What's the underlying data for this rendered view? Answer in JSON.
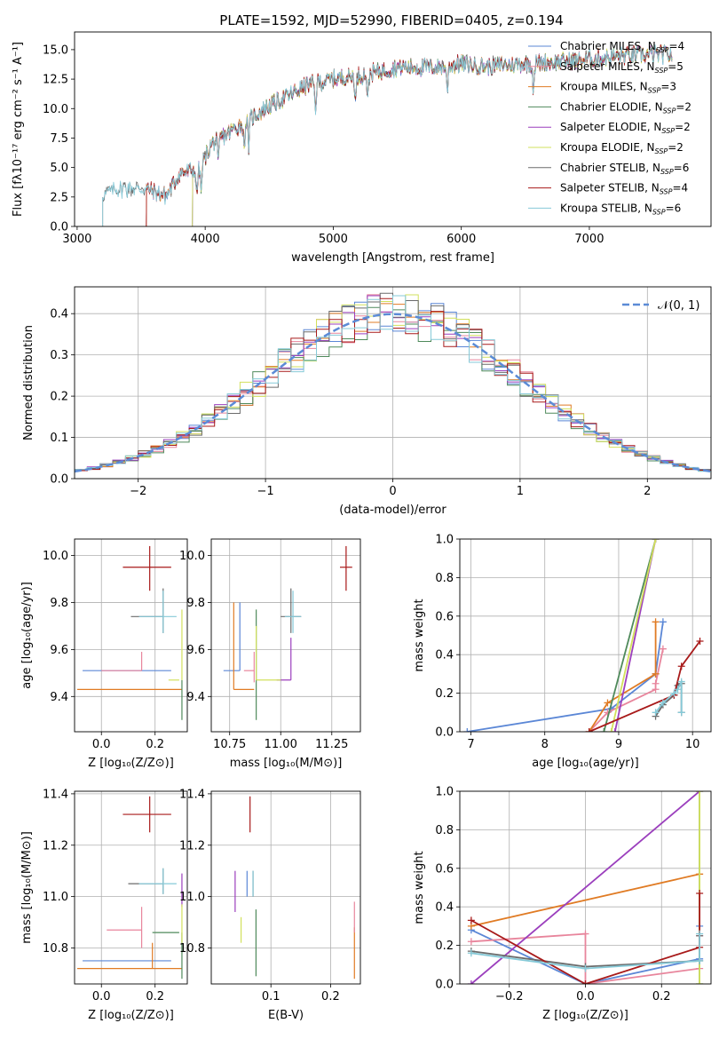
{
  "colors": {
    "Chabrier MILES": "#5b87d6",
    "Salpeter MILES": "#e8859c",
    "Kroupa MILES": "#e07b24",
    "Chabrier ELODIE": "#4f8a5b",
    "Salpeter ELODIE": "#9b3fbd",
    "Kroupa ELODIE": "#d2e05c",
    "Chabrier STELIB": "#6b6b6b",
    "Salpeter STELIB": "#a81a1a",
    "Kroupa STELIB": "#86cad8"
  },
  "chart_data": [
    {
      "id": "spectrum",
      "type": "line",
      "title": "PLATE=1592, MJD=52990, FIBERID=0405, z=0.194",
      "xlabel": "wavelength [Angstrom, rest frame]",
      "ylabel": "Flux [fλ10⁻¹⁷ erg cm⁻² s⁻¹ A⁻¹]",
      "xlim": [
        2980,
        7950
      ],
      "ylim": [
        0,
        16.5
      ],
      "xticks": [
        3000,
        4000,
        5000,
        6000,
        7000
      ],
      "yticks": [
        0.0,
        2.5,
        5.0,
        7.5,
        10.0,
        12.5,
        15.0
      ],
      "legend_position": "right",
      "series": [
        {
          "name": "Chabrier MILES, N_SSP=4",
          "model": "Chabrier MILES",
          "start": 3540
        },
        {
          "name": "Salpeter MILES, N_SSP=5",
          "model": "Salpeter MILES",
          "start": 3540
        },
        {
          "name": "Kroupa MILES, N_SSP=3",
          "model": "Kroupa MILES",
          "start": 3540
        },
        {
          "name": "Chabrier ELODIE, N_SSP=2",
          "model": "Chabrier ELODIE",
          "start": 3900
        },
        {
          "name": "Salpeter ELODIE, N_SSP=2",
          "model": "Salpeter ELODIE",
          "start": 3900
        },
        {
          "name": "Kroupa ELODIE, N_SSP=2",
          "model": "Kroupa ELODIE",
          "start": 3900
        },
        {
          "name": "Chabrier STELIB, N_SSP=6",
          "model": "Chabrier STELIB",
          "start": 3200
        },
        {
          "name": "Salpeter STELIB, N_SSP=4",
          "model": "Salpeter STELIB",
          "start": 3540
        },
        {
          "name": "Kroupa STELIB, N_SSP=6",
          "model": "Kroupa STELIB",
          "start": 3200
        }
      ],
      "continuum_points": {
        "x": [
          3200,
          3300,
          3500,
          3700,
          3800,
          3950,
          4050,
          4300,
          4500,
          4800,
          5000,
          5200,
          5500,
          5800,
          6000,
          6200,
          6500,
          6800,
          7000,
          7300,
          7500,
          7650
        ],
        "y": [
          2.8,
          3.2,
          3.3,
          2.6,
          4.5,
          4.8,
          7.0,
          8.8,
          10.2,
          12.0,
          12.5,
          12.8,
          13.5,
          13.5,
          13.8,
          13.6,
          13.8,
          14.0,
          14.2,
          14.5,
          14.6,
          14.6
        ]
      },
      "absorption_lines": [
        3934,
        3969,
        4102,
        4304,
        4340,
        4861,
        5175,
        5270,
        5890,
        6563
      ]
    },
    {
      "id": "residuals",
      "type": "histogram",
      "xlabel": "(data-model)/error",
      "ylabel": "Normed distribution",
      "xlim": [
        -2.5,
        2.5
      ],
      "ylim": [
        0,
        0.465
      ],
      "xticks": [
        -2,
        -1,
        0,
        1,
        2
      ],
      "yticks": [
        0.0,
        0.1,
        0.2,
        0.3,
        0.4
      ],
      "legend": "𝒩(0, 1)",
      "bin_width": 0.1
    },
    {
      "id": "age_vs_Z",
      "type": "errorbar",
      "xlabel": "Z [log₁₀(Z/Z⊙)]",
      "ylabel": "age  [log₁₀(age/yr)]",
      "xlim": [
        -0.1,
        0.32
      ],
      "ylim": [
        9.25,
        10.07
      ],
      "xticks": [
        0.0,
        0.2
      ],
      "yticks": [
        9.4,
        9.6,
        9.8,
        10.0
      ],
      "points": [
        {
          "model": "Chabrier MILES",
          "x": 0.2,
          "xerr": [
            0.27,
            0.06
          ],
          "y": 9.51,
          "yerr": [
            0.0,
            0.0
          ]
        },
        {
          "model": "Salpeter MILES",
          "x": 0.15,
          "xerr": [
            0.15,
            0.0
          ],
          "y": 9.51,
          "yerr": [
            0.0,
            0.08
          ]
        },
        {
          "model": "Kroupa MILES",
          "x": 0.19,
          "xerr": [
            0.28,
            0.11
          ],
          "y": 9.43,
          "yerr": [
            0.0,
            0.0
          ]
        },
        {
          "model": "Chabrier ELODIE",
          "x": 0.3,
          "xerr": [
            0.0,
            0.0
          ],
          "y": 9.47,
          "yerr": [
            0.17,
            0.0
          ]
        },
        {
          "model": "Salpeter ELODIE",
          "x": 0.3,
          "xerr": [
            0.0,
            0.0
          ],
          "y": 9.47,
          "yerr": [
            0.0,
            0.0
          ]
        },
        {
          "model": "Kroupa ELODIE",
          "x": 0.3,
          "xerr": [
            0.0,
            0.0
          ],
          "y": 9.47,
          "yerr": [
            0.0,
            0.3
          ]
        },
        {
          "model": "Chabrier STELIB",
          "x": 0.23,
          "xerr": [
            0.12,
            0.0
          ],
          "y": 9.74,
          "yerr": [
            0.07,
            0.12
          ]
        },
        {
          "model": "Salpeter STELIB",
          "x": 0.18,
          "xerr": [
            0.1,
            0.08
          ],
          "y": 9.95,
          "yerr": [
            0.1,
            0.09
          ]
        },
        {
          "model": "Kroupa STELIB",
          "x": 0.23,
          "xerr": [
            0.09,
            0.05
          ],
          "y": 9.74,
          "yerr": [
            0.07,
            0.11
          ]
        },
        {
          "model": "Kroupa ELODIE",
          "x": 0.29,
          "xerr": [
            0.04,
            0.0
          ],
          "y": 9.47,
          "yerr": [
            0.0,
            0.0
          ]
        }
      ]
    },
    {
      "id": "age_vs_mass",
      "type": "errorbar",
      "xlabel": "mass [log₁₀(M/M⊙)]",
      "ylabel": "",
      "xlim": [
        10.66,
        11.39
      ],
      "ylim": [
        9.25,
        10.07
      ],
      "xticks": [
        10.75,
        11.0,
        11.25
      ],
      "yticks": [
        9.4,
        9.6,
        9.8,
        10.0
      ],
      "points": [
        {
          "model": "Chabrier MILES",
          "x": 10.8,
          "xerr": [
            0.08,
            0.0
          ],
          "y": 9.51,
          "yerr": [
            0.0,
            0.29
          ]
        },
        {
          "model": "Salpeter MILES",
          "x": 10.87,
          "xerr": [
            0.05,
            0.0
          ],
          "y": 9.51,
          "yerr": [
            0.05,
            0.08
          ]
        },
        {
          "model": "Kroupa MILES",
          "x": 10.77,
          "xerr": [
            0.0,
            0.1
          ],
          "y": 9.43,
          "yerr": [
            0.0,
            0.37
          ]
        },
        {
          "model": "Chabrier ELODIE",
          "x": 10.88,
          "xerr": [
            0.0,
            0.0
          ],
          "y": 9.47,
          "yerr": [
            0.17,
            0.3
          ]
        },
        {
          "model": "Salpeter ELODIE",
          "x": 11.05,
          "xerr": [
            0.07,
            0.0
          ],
          "y": 9.47,
          "yerr": [
            0.0,
            0.18
          ]
        },
        {
          "model": "Kroupa ELODIE",
          "x": 10.88,
          "xerr": [
            0.0,
            0.12
          ],
          "y": 9.47,
          "yerr": [
            0.0,
            0.23
          ]
        },
        {
          "model": "Chabrier STELIB",
          "x": 11.05,
          "xerr": [
            0.05,
            0.05
          ],
          "y": 9.74,
          "yerr": [
            0.07,
            0.12
          ]
        },
        {
          "model": "Salpeter STELIB",
          "x": 11.32,
          "xerr": [
            0.03,
            0.03
          ],
          "y": 9.95,
          "yerr": [
            0.1,
            0.09
          ]
        },
        {
          "model": "Kroupa STELIB",
          "x": 11.06,
          "xerr": [
            0.04,
            0.04
          ],
          "y": 9.74,
          "yerr": [
            0.07,
            0.11
          ]
        }
      ]
    },
    {
      "id": "massweight_vs_age",
      "type": "line",
      "xlabel": "age  [log₁₀(age/yr)]",
      "ylabel": "mass weight",
      "xlim": [
        6.85,
        10.25
      ],
      "ylim": [
        0,
        1.0
      ],
      "xticks": [
        7,
        8,
        9,
        10
      ],
      "yticks": [
        0.0,
        0.2,
        0.4,
        0.6,
        0.8,
        1.0
      ],
      "series": [
        {
          "model": "Chabrier MILES",
          "x": [
            6.95,
            8.9,
            9.5,
            9.5,
            9.6
          ],
          "y": [
            0.0,
            0.12,
            0.3,
            0.3,
            0.57
          ]
        },
        {
          "model": "Salpeter MILES",
          "x": [
            8.6,
            8.85,
            9.5,
            9.5,
            9.6
          ],
          "y": [
            0.0,
            0.1,
            0.22,
            0.25,
            0.43
          ]
        },
        {
          "model": "Kroupa MILES",
          "x": [
            8.6,
            8.85,
            9.5,
            9.5,
            9.5
          ],
          "y": [
            0.0,
            0.15,
            0.3,
            0.3,
            0.57
          ]
        },
        {
          "model": "Chabrier ELODIE",
          "x": [
            8.8,
            9.5
          ],
          "y": [
            0.0,
            1.0
          ]
        },
        {
          "model": "Salpeter ELODIE",
          "x": [
            8.95,
            9.5
          ],
          "y": [
            0.0,
            1.0
          ]
        },
        {
          "model": "Kroupa ELODIE",
          "x": [
            8.9,
            9.5
          ],
          "y": [
            0.0,
            1.0
          ]
        },
        {
          "model": "Chabrier STELIB",
          "x": [
            9.5,
            9.6,
            9.75,
            9.8,
            9.85,
            9.85
          ],
          "y": [
            0.08,
            0.14,
            0.19,
            0.24,
            0.25,
            0.1
          ]
        },
        {
          "model": "Salpeter STELIB",
          "x": [
            8.6,
            9.75,
            9.85,
            10.1
          ],
          "y": [
            0.0,
            0.19,
            0.34,
            0.47
          ]
        },
        {
          "model": "Kroupa STELIB",
          "x": [
            9.5,
            9.6,
            9.75,
            9.8,
            9.85,
            9.85
          ],
          "y": [
            0.1,
            0.15,
            0.2,
            0.22,
            0.26,
            0.1
          ]
        }
      ]
    },
    {
      "id": "mass_vs_Z",
      "type": "errorbar",
      "xlabel": "Z [log₁₀(Z/Z⊙)]",
      "ylabel": "mass [log₁₀(M/M⊙)]",
      "xlim": [
        -0.1,
        0.32
      ],
      "ylim": [
        10.66,
        11.41
      ],
      "xticks": [
        0.0,
        0.2
      ],
      "yticks": [
        10.8,
        11.0,
        11.2,
        11.4
      ],
      "points": [
        {
          "model": "Chabrier MILES",
          "x": 0.2,
          "xerr": [
            0.27,
            0.06
          ],
          "y": 10.75,
          "yerr": [
            0.0,
            0.0
          ]
        },
        {
          "model": "Salpeter MILES",
          "x": 0.15,
          "xerr": [
            0.13,
            0.0
          ],
          "y": 10.87,
          "yerr": [
            0.07,
            0.09
          ]
        },
        {
          "model": "Kroupa MILES",
          "x": 0.19,
          "xerr": [
            0.28,
            0.11
          ],
          "y": 10.72,
          "yerr": [
            0.0,
            0.1
          ]
        },
        {
          "model": "Chabrier ELODIE",
          "x": 0.3,
          "xerr": [
            0.0,
            0.0
          ],
          "y": 10.8,
          "yerr": [
            0.12,
            0.06
          ]
        },
        {
          "model": "Salpeter ELODIE",
          "x": 0.3,
          "xerr": [
            0.0,
            0.0
          ],
          "y": 11.02,
          "yerr": [
            0.06,
            0.07
          ]
        },
        {
          "model": "Kroupa ELODIE",
          "x": 0.3,
          "xerr": [
            0.0,
            0.0
          ],
          "y": 10.87,
          "yerr": [
            0.05,
            0.1
          ]
        },
        {
          "model": "Chabrier STELIB",
          "x": 0.23,
          "xerr": [
            0.13,
            0.0
          ],
          "y": 11.05,
          "yerr": [
            0.04,
            0.06
          ]
        },
        {
          "model": "Salpeter STELIB",
          "x": 0.18,
          "xerr": [
            0.1,
            0.08
          ],
          "y": 11.32,
          "yerr": [
            0.07,
            0.07
          ]
        },
        {
          "model": "Kroupa STELIB",
          "x": 0.23,
          "xerr": [
            0.09,
            0.05
          ],
          "y": 11.05,
          "yerr": [
            0.04,
            0.06
          ]
        },
        {
          "model": "Chabrier ELODIE",
          "x": 0.19,
          "xerr": [
            0.0,
            0.1
          ],
          "y": 10.86,
          "yerr": [
            0.0,
            0.0
          ]
        }
      ]
    },
    {
      "id": "mass_vs_EBV",
      "type": "errorbar",
      "xlabel": "E(B-V)",
      "ylabel": "",
      "xlim": [
        0.0,
        0.25
      ],
      "ylim": [
        10.66,
        11.41
      ],
      "xticks": [
        0.1,
        0.2
      ],
      "yticks": [
        10.8,
        11.0,
        11.2,
        11.4
      ],
      "points": [
        {
          "model": "Chabrier MILES",
          "x": 0.06,
          "xerr": [
            0.0,
            0.0
          ],
          "y": 11.05,
          "yerr": [
            0.05,
            0.05
          ]
        },
        {
          "model": "Kroupa MILES",
          "x": 0.24,
          "xerr": [
            0.0,
            0.0
          ],
          "y": 10.78,
          "yerr": [
            0.1,
            0.1
          ]
        },
        {
          "model": "Salpeter MILES",
          "x": 0.24,
          "xerr": [
            0.0,
            0.0
          ],
          "y": 10.92,
          "yerr": [
            0.06,
            0.06
          ]
        },
        {
          "model": "Chabrier ELODIE",
          "x": 0.075,
          "xerr": [
            0.0,
            0.0
          ],
          "y": 10.82,
          "yerr": [
            0.13,
            0.13
          ]
        },
        {
          "model": "Salpeter ELODIE",
          "x": 0.04,
          "xerr": [
            0.0,
            0.0
          ],
          "y": 11.02,
          "yerr": [
            0.08,
            0.08
          ]
        },
        {
          "model": "Kroupa ELODIE",
          "x": 0.05,
          "xerr": [
            0.0,
            0.0
          ],
          "y": 10.87,
          "yerr": [
            0.05,
            0.05
          ]
        },
        {
          "model": "Chabrier STELIB",
          "x": 0.07,
          "xerr": [
            0.0,
            0.0
          ],
          "y": 11.05,
          "yerr": [
            0.05,
            0.05
          ]
        },
        {
          "model": "Salpeter STELIB",
          "x": 0.065,
          "xerr": [
            0.0,
            0.0
          ],
          "y": 11.32,
          "yerr": [
            0.07,
            0.07
          ]
        },
        {
          "model": "Kroupa STELIB",
          "x": 0.07,
          "xerr": [
            0.0,
            0.0
          ],
          "y": 11.05,
          "yerr": [
            0.05,
            0.05
          ]
        }
      ]
    },
    {
      "id": "massweight_vs_Z",
      "type": "line",
      "xlabel": "Z [log₁₀(Z/Z⊙)]",
      "ylabel": "mass weight",
      "xlim": [
        -0.33,
        0.33
      ],
      "ylim": [
        0,
        1.0
      ],
      "xticks": [
        -0.2,
        0.0,
        0.2
      ],
      "yticks": [
        0.0,
        0.2,
        0.4,
        0.6,
        0.8,
        1.0
      ],
      "series": [
        {
          "model": "Chabrier MILES",
          "x": [
            -0.3,
            0.0,
            0.3,
            0.3
          ],
          "y": [
            0.28,
            0.0,
            0.13,
            0.3
          ]
        },
        {
          "model": "Salpeter MILES",
          "x": [
            -0.3,
            0.0,
            0.0,
            0.3,
            0.3
          ],
          "y": [
            0.22,
            0.26,
            0.0,
            0.08,
            0.25
          ]
        },
        {
          "model": "Kroupa MILES",
          "x": [
            -0.3,
            0.3
          ],
          "y": [
            0.3,
            0.57
          ]
        },
        {
          "model": "Chabrier ELODIE",
          "x": [
            0.3,
            0.3
          ],
          "y": [
            0.0,
            1.0
          ]
        },
        {
          "model": "Salpeter ELODIE",
          "x": [
            -0.3,
            0.3
          ],
          "y": [
            0.0,
            1.0
          ]
        },
        {
          "model": "Kroupa ELODIE",
          "x": [
            0.3,
            0.3
          ],
          "y": [
            0.0,
            1.0
          ]
        },
        {
          "model": "Chabrier STELIB",
          "x": [
            -0.3,
            0.0,
            0.3,
            0.3
          ],
          "y": [
            0.17,
            0.09,
            0.12,
            0.25
          ]
        },
        {
          "model": "Salpeter STELIB",
          "x": [
            -0.3,
            0.0,
            0.3,
            0.3
          ],
          "y": [
            0.33,
            0.0,
            0.19,
            0.47
          ]
        },
        {
          "model": "Kroupa STELIB",
          "x": [
            -0.3,
            0.0,
            0.3,
            0.3
          ],
          "y": [
            0.16,
            0.08,
            0.12,
            0.26
          ]
        }
      ]
    }
  ]
}
